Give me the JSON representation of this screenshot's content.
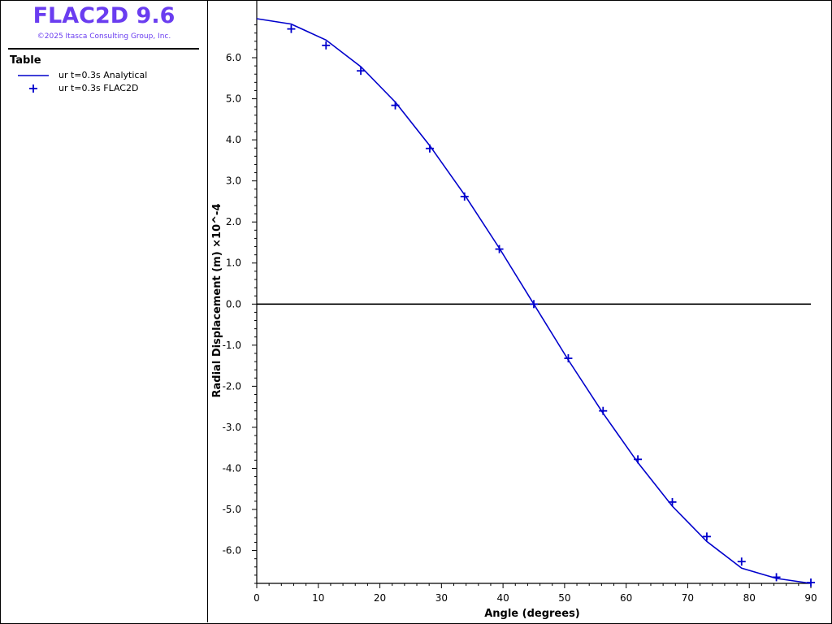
{
  "app": {
    "title": "FLAC2D 9.6",
    "copyright": "©2025 Itasca Consulting Group, Inc."
  },
  "legend": {
    "title": "Table",
    "items": [
      {
        "label": "ur t=0.3s Analytical",
        "style": "line"
      },
      {
        "label": "ur t=0.3s FLAC2D",
        "style": "marker"
      }
    ]
  },
  "colors": {
    "series": "#0000cc",
    "brand": "#6a3df0",
    "axis": "#000000"
  },
  "chart_data": {
    "type": "line",
    "xlabel": "Angle (degrees)",
    "ylabel": "Radial Displacement (m) ×10^-4",
    "xlim": [
      0,
      90
    ],
    "ylim": [
      -6.8,
      6.95
    ],
    "xticks": [
      "0",
      "10",
      "20",
      "30",
      "40",
      "50",
      "60",
      "70",
      "80",
      "90"
    ],
    "yticks": [
      {
        "value": 6,
        "label": "6.0"
      },
      {
        "value": 5,
        "label": "5.0"
      },
      {
        "value": 4,
        "label": "4.0"
      },
      {
        "value": 3,
        "label": "3.0"
      },
      {
        "value": 2,
        "label": "2.0"
      },
      {
        "value": 1,
        "label": "1.0"
      },
      {
        "value": 0,
        "label": "0.0"
      },
      {
        "value": -1,
        "label": "-1.0"
      },
      {
        "value": -2,
        "label": "-2.0"
      },
      {
        "value": -3,
        "label": "-3.0"
      },
      {
        "value": -4,
        "label": "-4.0"
      },
      {
        "value": -5,
        "label": "-5.0"
      },
      {
        "value": -6,
        "label": "-6.0"
      }
    ],
    "zero_line": true,
    "series": [
      {
        "name": "ur t=0.3s Analytical",
        "style": "line",
        "x": [
          0,
          5.6,
          11.25,
          16.9,
          22.5,
          28.1,
          33.75,
          39.4,
          45,
          50.6,
          56.25,
          61.9,
          67.5,
          73.1,
          78.75,
          84.4,
          90
        ],
        "y": [
          6.95,
          6.82,
          6.43,
          5.78,
          4.92,
          3.86,
          2.66,
          1.36,
          0.0,
          -1.36,
          -2.66,
          -3.86,
          -4.92,
          -5.78,
          -6.43,
          -6.68,
          -6.8
        ]
      },
      {
        "name": "ur t=0.3s FLAC2D",
        "style": "marker",
        "x": [
          5.6,
          11.25,
          16.9,
          22.5,
          28.1,
          33.75,
          39.4,
          45,
          50.6,
          56.25,
          61.9,
          67.5,
          73.1,
          78.75,
          84.4,
          90
        ],
        "y": [
          6.7,
          6.3,
          5.68,
          4.84,
          3.79,
          2.62,
          1.34,
          0.0,
          -1.32,
          -2.6,
          -3.78,
          -4.82,
          -5.66,
          -6.27,
          -6.65,
          -6.78
        ]
      }
    ]
  }
}
